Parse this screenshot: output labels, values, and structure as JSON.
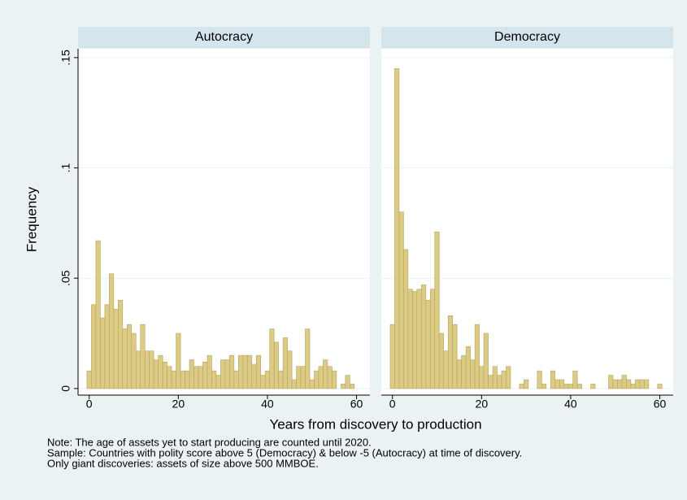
{
  "chart_data": {
    "type": "histogram",
    "ylabel": "Frequency",
    "xlabel": "Years from discovery to production",
    "notes": [
      "Note: The age of assets yet to start producing are counted until 2020.",
      "Sample: Countries with polity score above 5 (Democracy) & below -5 (Autocracy) at time of discovery.",
      "Only giant discoveries: assets of size above 500 MMBOE."
    ],
    "color": "#dccb85",
    "edge_color": "#b7a35f",
    "grid": true,
    "ylim": [
      -0.003,
      0.154
    ],
    "yticks": [
      0,
      {
        "value": 0.05,
        "label": ".05"
      },
      {
        "value": 0.1,
        "label": ".1"
      },
      {
        "value": 0.15,
        "label": ".15"
      }
    ],
    "xlim": [
      -2.5,
      63
    ],
    "xticks": [
      0,
      20,
      40,
      60
    ],
    "bins": [
      -0.5,
      0.5,
      1.5,
      2.5,
      3.5,
      4.5,
      5.5,
      6.5,
      7.5,
      8.5,
      9.5,
      10.5,
      11.5,
      12.5,
      13.5,
      14.5,
      15.5,
      16.5,
      17.5,
      18.5,
      19.5,
      20.5,
      21.5,
      22.5,
      23.5,
      24.5,
      25.5,
      26.5,
      27.5,
      28.5,
      29.5,
      30.5,
      31.5,
      32.5,
      33.5,
      34.5,
      35.5,
      36.5,
      37.5,
      38.5,
      39.5,
      40.5,
      41.5,
      42.5,
      43.5,
      44.5,
      45.5,
      46.5,
      47.5,
      48.5,
      49.5,
      50.5,
      51.5,
      52.5,
      53.5,
      54.5,
      55.5,
      56.5,
      57.5,
      58.5,
      59.5,
      60.5
    ],
    "panels": [
      {
        "title": "Autocracy",
        "values": [
          0.008,
          0.038,
          0.067,
          0.032,
          0.038,
          0.052,
          0.036,
          0.04,
          0.027,
          0.029,
          0.025,
          0.017,
          0.029,
          0.017,
          0.017,
          0.013,
          0.015,
          0.012,
          0.01,
          0.008,
          0.025,
          0.008,
          0.008,
          0.013,
          0.01,
          0.01,
          0.012,
          0.015,
          0.008,
          0.006,
          0.013,
          0.013,
          0.015,
          0.008,
          0.015,
          0.015,
          0.015,
          0.011,
          0.015,
          0.006,
          0.008,
          0.027,
          0.021,
          0.008,
          0.023,
          0.017,
          0.004,
          0.01,
          0.01,
          0.027,
          0.004,
          0.008,
          0.01,
          0.013,
          0.01,
          0.008,
          0,
          0.002,
          0.006,
          0.002,
          0
        ]
      },
      {
        "title": "Democracy",
        "values": [
          0.029,
          0.145,
          0.08,
          0.063,
          0.045,
          0.044,
          0.045,
          0.047,
          0.04,
          0.045,
          0.071,
          0.025,
          0.017,
          0.033,
          0.029,
          0.013,
          0.015,
          0.019,
          0.013,
          0.029,
          0.01,
          0.025,
          0.006,
          0.01,
          0.006,
          0.008,
          0.01,
          0,
          0,
          0.002,
          0.004,
          0,
          0,
          0.008,
          0.002,
          0,
          0.008,
          0.004,
          0.004,
          0.002,
          0.002,
          0.008,
          0.002,
          0,
          0,
          0.002,
          0,
          0,
          0,
          0.006,
          0.004,
          0.004,
          0.006,
          0.004,
          0.002,
          0.004,
          0.004,
          0.004,
          0,
          0,
          0.002
        ]
      }
    ]
  }
}
